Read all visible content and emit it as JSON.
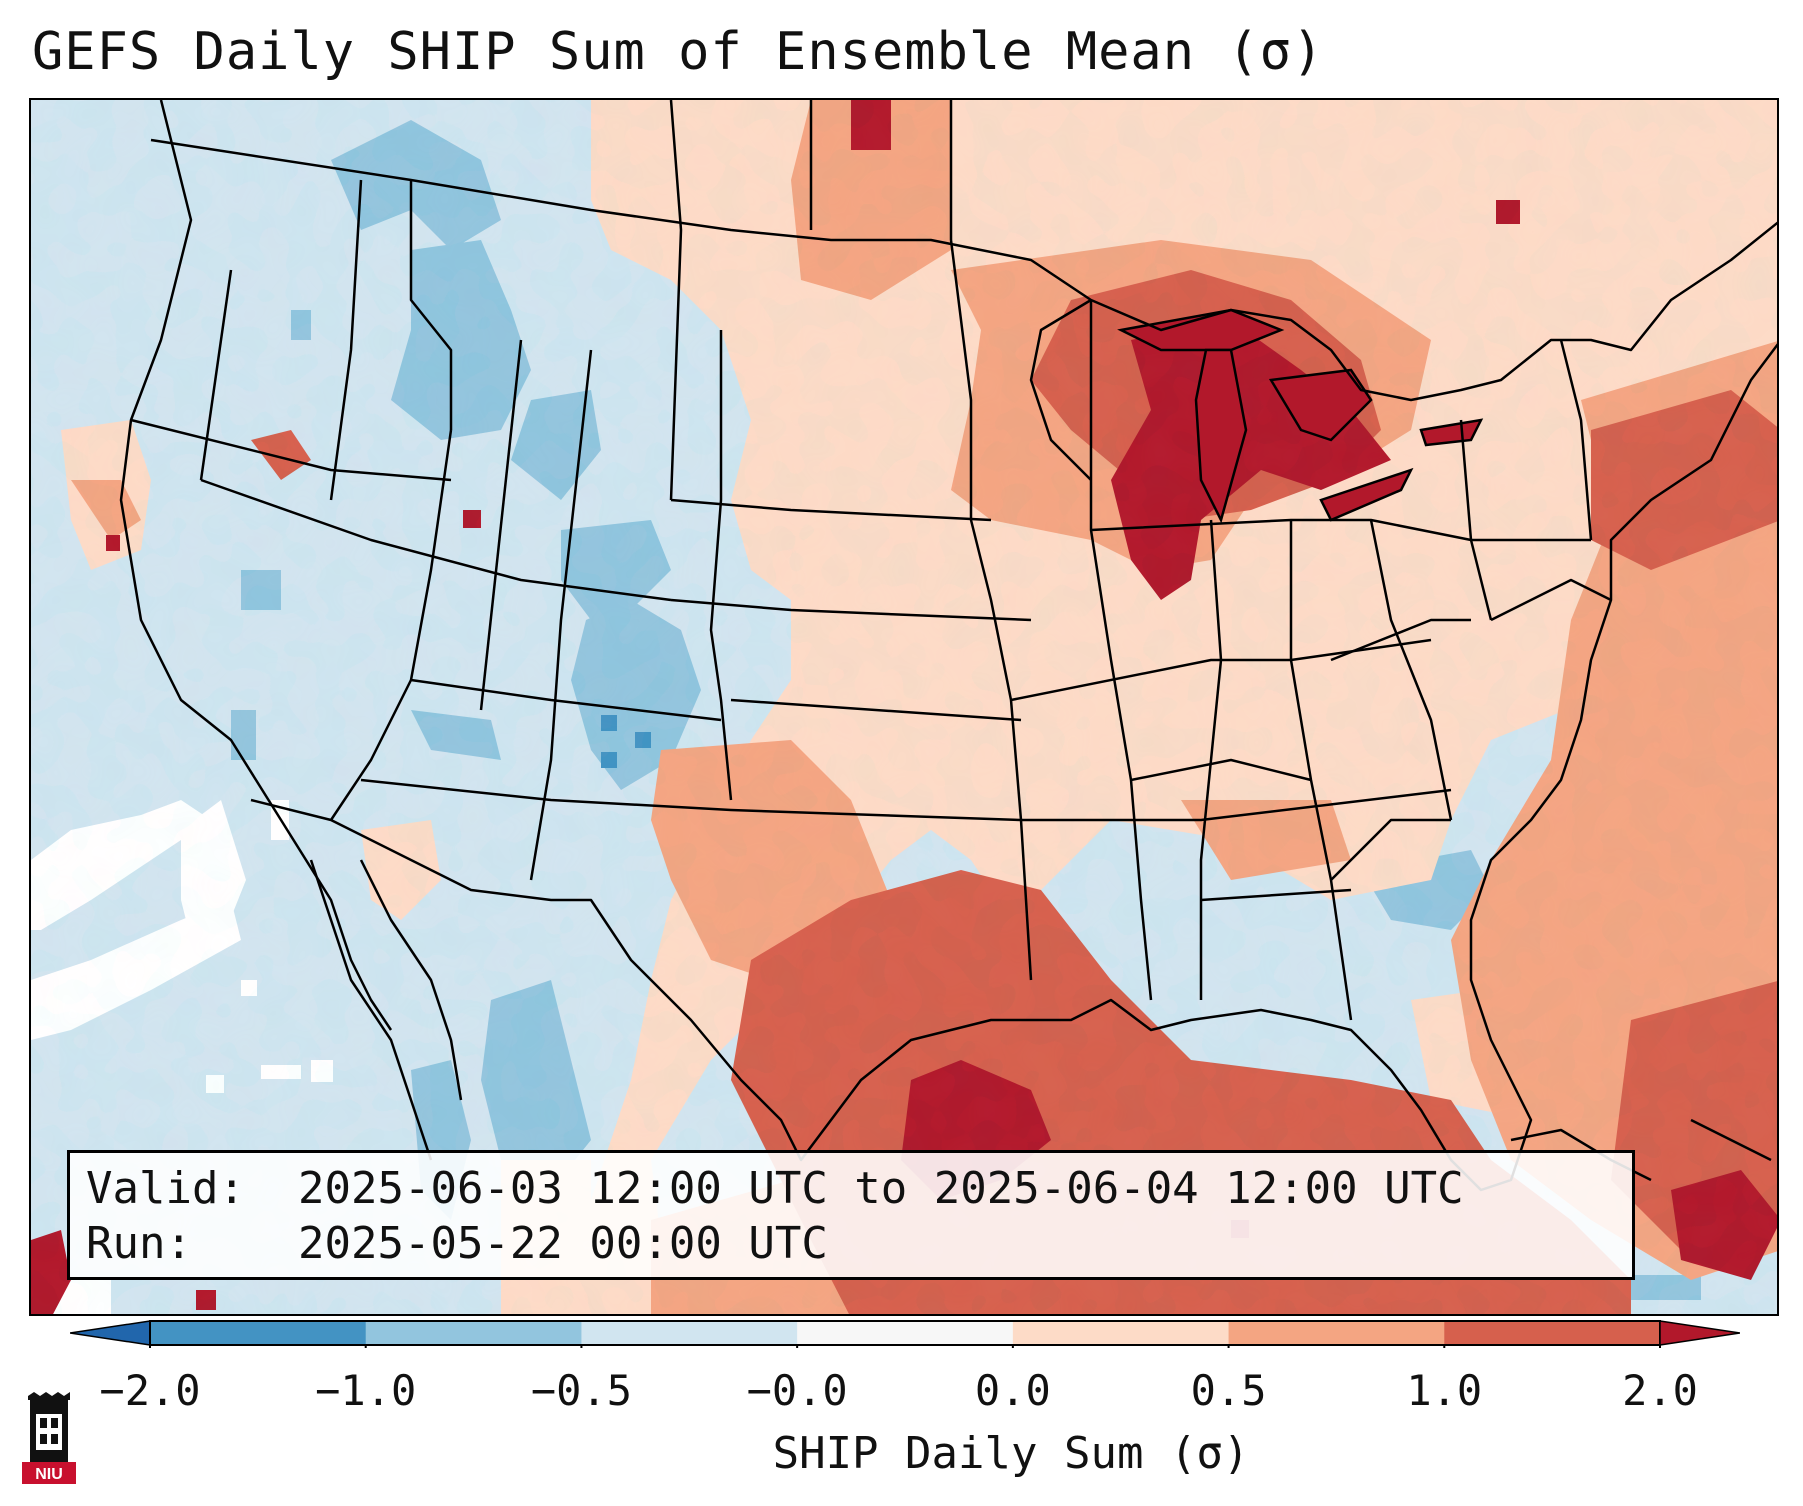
{
  "title": "GEFS Daily SHIP Sum of Ensemble Mean (σ)",
  "info": {
    "valid_label": "Valid:",
    "valid_value": "2025-06-03 12:00 UTC to 2025-06-04 12:00 UTC",
    "run_label": "Run:",
    "run_value": "2025-05-22 00:00 UTC"
  },
  "colorbar": {
    "label": "SHIP Daily Sum (σ)",
    "bins": [
      {
        "from": -2.0,
        "to": -1.0,
        "color": "#4393c3"
      },
      {
        "from": -1.0,
        "to": -0.5,
        "color": "#92c5de"
      },
      {
        "from": -0.5,
        "to": 0.0,
        "color": "#d1e5f0"
      },
      {
        "from": 0.0,
        "to": 0.0,
        "color": "#f7f7f7"
      },
      {
        "from": 0.0,
        "to": 0.5,
        "color": "#fddbc7"
      },
      {
        "from": 0.5,
        "to": 1.0,
        "color": "#f4a582"
      },
      {
        "from": 1.0,
        "to": 2.0,
        "color": "#d6604d"
      }
    ],
    "under_color": "#2166ac",
    "over_color": "#b2182b",
    "ticks": [
      "−2.0",
      "−1.0",
      "−0.5",
      "−0.0",
      "0.0",
      "0.5",
      "1.0",
      "2.0"
    ]
  },
  "logo": {
    "text": "NIU",
    "colors": {
      "primary": "#c8102e",
      "secondary": "#111111"
    }
  },
  "map": {
    "projection": "Lambert Conformal (CONUS)",
    "valid_date": "2025-06-03",
    "anomaly_regions": [
      {
        "name": "Upper Great Lakes",
        "category": "above 1.0σ"
      },
      {
        "name": "Texas / Louisiana Gulf Coast",
        "category": "above 1.0σ"
      },
      {
        "name": "Western Gulf of Mexico",
        "category": "0.5 to 1.0σ"
      },
      {
        "name": "Atlantic off Northeast coast",
        "category": "0.5 to 1.0σ"
      },
      {
        "name": "Colorado Rockies",
        "category": "below −0.5σ"
      },
      {
        "name": "Idaho / Montana",
        "category": "below −0.5σ"
      },
      {
        "name": "Eastern Pacific",
        "category": "near 0.0σ"
      }
    ]
  }
}
